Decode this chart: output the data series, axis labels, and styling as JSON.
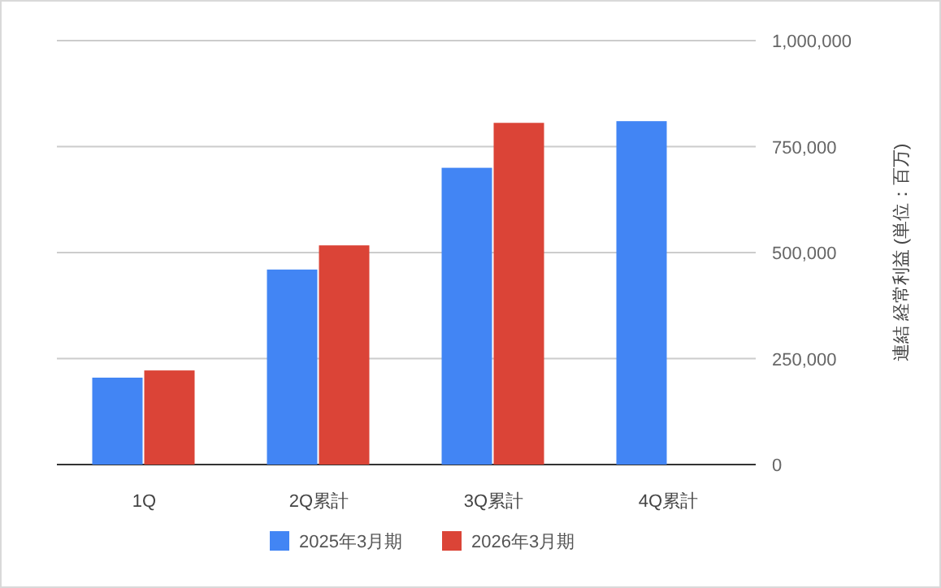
{
  "chart_data": {
    "type": "bar",
    "categories": [
      "1Q",
      "2Q累計",
      "3Q累計",
      "4Q累計"
    ],
    "series": [
      {
        "name": "2025年3月期",
        "color": "#4285f4",
        "values": [
          205000,
          460000,
          700000,
          810000
        ]
      },
      {
        "name": "2026年3月期",
        "color": "#db4437",
        "values": [
          222000,
          517000,
          806000,
          null
        ]
      }
    ],
    "ylabel": "連結 経常利益 (単位：百万)",
    "ylim": [
      0,
      1000000
    ],
    "yticks": [
      {
        "value": 0,
        "label": "0"
      },
      {
        "value": 250000,
        "label": "250,000"
      },
      {
        "value": 500000,
        "label": "500,000"
      },
      {
        "value": 750000,
        "label": "750,000"
      },
      {
        "value": 1000000,
        "label": "1,000,000"
      }
    ],
    "grid": "y",
    "legend": "bottom"
  }
}
